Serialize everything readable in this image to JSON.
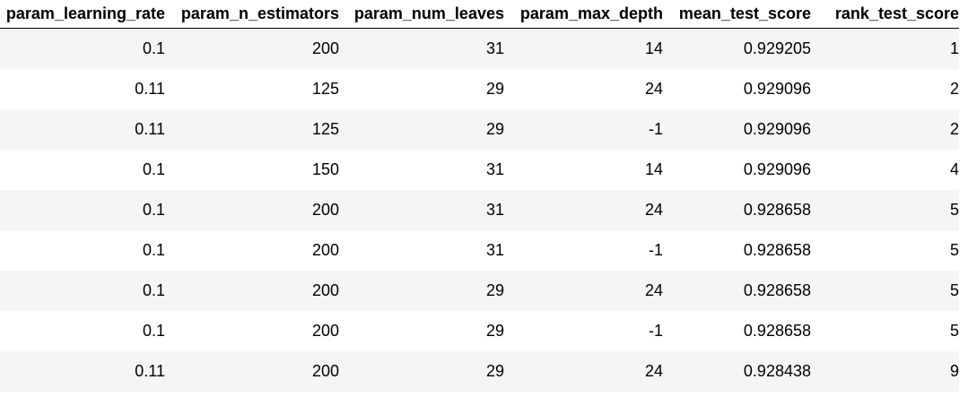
{
  "table": {
    "columns": [
      "param_learning_rate",
      "param_n_estimators",
      "param_num_leaves",
      "param_max_depth",
      "mean_test_score",
      "rank_test_score"
    ],
    "rows": [
      [
        "0.1",
        "200",
        "31",
        "14",
        "0.929205",
        "1"
      ],
      [
        "0.11",
        "125",
        "29",
        "24",
        "0.929096",
        "2"
      ],
      [
        "0.11",
        "125",
        "29",
        "-1",
        "0.929096",
        "2"
      ],
      [
        "0.1",
        "150",
        "31",
        "14",
        "0.929096",
        "4"
      ],
      [
        "0.1",
        "200",
        "31",
        "24",
        "0.928658",
        "5"
      ],
      [
        "0.1",
        "200",
        "31",
        "-1",
        "0.928658",
        "5"
      ],
      [
        "0.1",
        "200",
        "29",
        "24",
        "0.928658",
        "5"
      ],
      [
        "0.1",
        "200",
        "29",
        "-1",
        "0.928658",
        "5"
      ],
      [
        "0.11",
        "200",
        "29",
        "24",
        "0.928438",
        "9"
      ]
    ]
  }
}
